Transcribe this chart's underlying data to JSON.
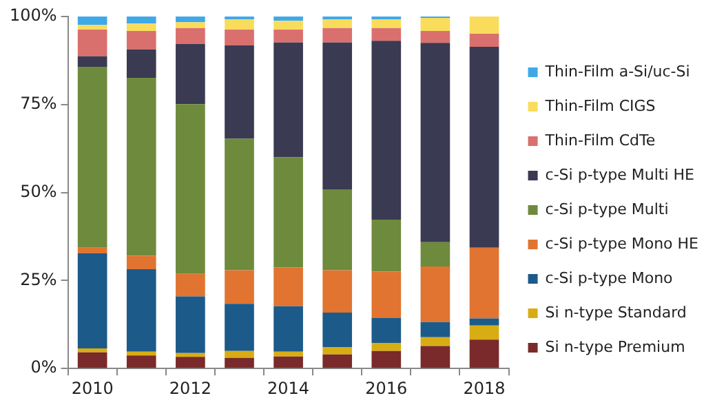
{
  "chart_data": {
    "type": "bar",
    "stacked": true,
    "categories": [
      "2010",
      null,
      "2012",
      null,
      "2014",
      null,
      "2016",
      null,
      "2018"
    ],
    "ylim": [
      0,
      100
    ],
    "yticks": [
      {
        "value": 0,
        "label": "0%"
      },
      {
        "value": 25,
        "label": "25%"
      },
      {
        "value": 50,
        "label": "50%"
      },
      {
        "value": 75,
        "label": "75%"
      },
      {
        "value": 100,
        "label": "100%"
      }
    ],
    "legend": "right",
    "series": [
      {
        "name": "Si n-type Premium",
        "color": "#7a2a2a",
        "values": [
          4.6,
          3.7,
          3.3,
          3.0,
          3.4,
          4.0,
          5.0,
          6.4,
          8.2
        ]
      },
      {
        "name": "Si n-type Standard",
        "color": "#d8ad14",
        "values": [
          1.1,
          1.1,
          1.1,
          2.0,
          1.4,
          2.0,
          2.3,
          2.5,
          4.0
        ]
      },
      {
        "name": "c-Si p-type Mono",
        "color": "#1c5a8a",
        "values": [
          27.0,
          23.4,
          16.1,
          13.4,
          12.9,
          9.9,
          7.1,
          4.3,
          2.0
        ]
      },
      {
        "name": "c-Si p-type Mono HE",
        "color": "#e07430",
        "values": [
          1.6,
          3.8,
          6.4,
          9.5,
          11.0,
          12.0,
          13.1,
          15.8,
          20.1
        ]
      },
      {
        "name": "c-Si p-type Multi",
        "color": "#6e8a3c",
        "values": [
          51.4,
          50.6,
          48.2,
          37.4,
          31.3,
          23.0,
          14.8,
          6.9,
          0
        ]
      },
      {
        "name": "c-Si p-type Multi HE",
        "color": "#3a3a52",
        "values": [
          3.0,
          8.0,
          17.1,
          26.5,
          32.6,
          41.7,
          50.8,
          56.6,
          57.1
        ]
      },
      {
        "name": "Thin-Film CdTe",
        "color": "#d9706e",
        "values": [
          7.6,
          5.3,
          4.5,
          4.5,
          3.7,
          4.1,
          3.6,
          3.4,
          3.7
        ]
      },
      {
        "name": "Thin-Film CIGS",
        "color": "#f9dc5c",
        "values": [
          1.3,
          2.1,
          1.7,
          2.9,
          2.5,
          2.5,
          2.5,
          3.7,
          4.9
        ]
      },
      {
        "name": "Thin-Film a-Si/uc-Si",
        "color": "#3fa9e8",
        "values": [
          2.4,
          2.0,
          1.6,
          0.8,
          1.2,
          0.8,
          0.8,
          0.4,
          0
        ]
      }
    ]
  }
}
